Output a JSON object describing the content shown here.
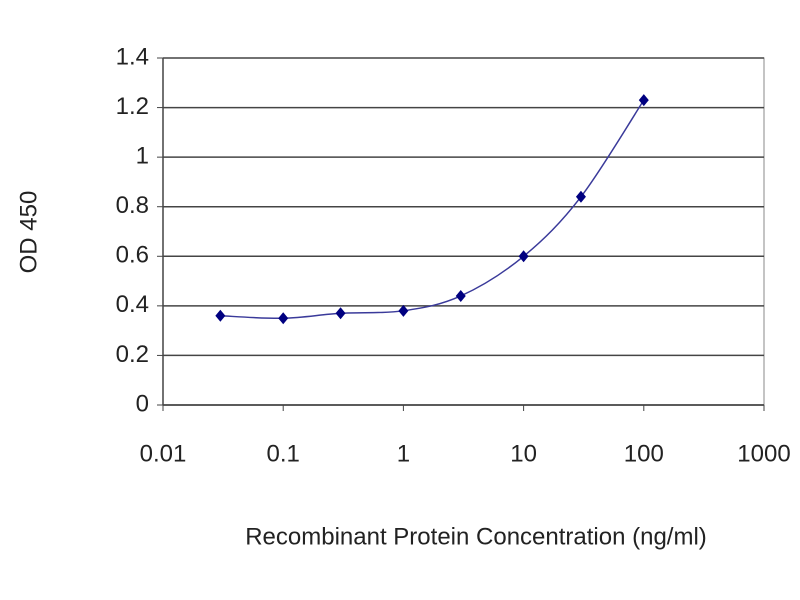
{
  "chart_data": {
    "type": "line",
    "x_label": "Recombinant Protein Concentration (ng/ml)",
    "y_label": "OD 450",
    "x_scale": "log",
    "x": [
      0.03,
      0.1,
      0.3,
      1,
      3,
      10,
      30,
      100
    ],
    "series": [
      {
        "color": "#000080",
        "values": [
          0.36,
          0.35,
          0.37,
          0.38,
          0.44,
          0.6,
          0.84,
          1.23
        ]
      }
    ],
    "line_color": "#3a3a9a",
    "xlim": [
      0.01,
      1000
    ],
    "xticks": [
      0.01,
      0.1,
      1,
      10,
      100,
      1000
    ],
    "ylim": [
      0,
      1.4
    ],
    "yticks": [
      0,
      0.2,
      0.4,
      0.6,
      0.8,
      1,
      1.2,
      1.4
    ],
    "grid": true
  }
}
